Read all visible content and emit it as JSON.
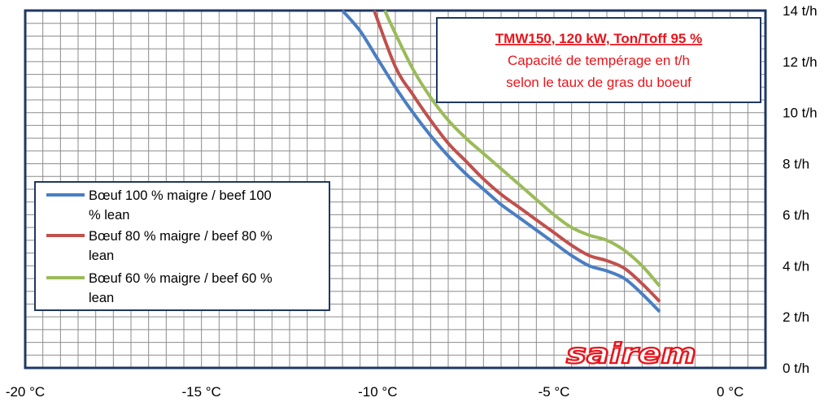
{
  "chart_data": {
    "type": "line",
    "title": "TMW150, 120 kW,  Ton/Toff 95 %",
    "subtitle_lines": [
      "Capacité de tempérage en t/h",
      "selon le taux de gras du boeuf"
    ],
    "x_ticks": [
      "-20 °C",
      "-15 °C",
      "-10 °C",
      "-5 °C",
      "0 °C"
    ],
    "y_ticks": [
      "0 t/h",
      "2 t/h",
      "4 t/h",
      "6 t/h",
      "8 t/h",
      "10 t/h",
      "12 t/h",
      "14 t/h"
    ],
    "xlim": [
      -20,
      1
    ],
    "ylim": [
      0,
      14
    ],
    "y_axis_position": "right",
    "grid": true,
    "legend_position": "middle-left",
    "series": [
      {
        "name_lines": [
          "Bœuf 100 % maigre / beef 100",
          "% lean"
        ],
        "color": "#4a7ec3",
        "x": [
          -11.0,
          -10.5,
          -10.0,
          -9.5,
          -9.0,
          -8.5,
          -8.0,
          -7.5,
          -7.0,
          -6.5,
          -6.0,
          -5.5,
          -5.0,
          -4.5,
          -4.0,
          -3.5,
          -3.0,
          -2.5,
          -2.0
        ],
        "y": [
          14.0,
          13.2,
          12.1,
          11.0,
          10.0,
          9.1,
          8.3,
          7.6,
          7.0,
          6.4,
          5.9,
          5.4,
          4.9,
          4.4,
          4.0,
          3.8,
          3.5,
          2.9,
          2.2
        ]
      },
      {
        "name_lines": [
          "Bœuf 80 % maigre /  beef 80 %",
          "lean"
        ],
        "color": "#c0504d",
        "x": [
          -10.1,
          -9.5,
          -9.0,
          -8.5,
          -8.0,
          -7.5,
          -7.0,
          -6.5,
          -6.0,
          -5.5,
          -5.0,
          -4.5,
          -4.0,
          -3.5,
          -3.0,
          -2.5,
          -2.0
        ],
        "y": [
          14.0,
          11.8,
          10.7,
          9.7,
          8.8,
          8.1,
          7.4,
          6.8,
          6.3,
          5.8,
          5.3,
          4.8,
          4.4,
          4.2,
          3.9,
          3.3,
          2.6
        ]
      },
      {
        "name_lines": [
          "Bœuf 60 % maigre / beef 60 %",
          "lean"
        ],
        "color": "#9bbb59",
        "x": [
          -9.8,
          -9.5,
          -9.0,
          -8.5,
          -8.0,
          -7.5,
          -7.0,
          -6.5,
          -6.0,
          -5.5,
          -5.0,
          -4.5,
          -4.0,
          -3.5,
          -3.0,
          -2.5,
          -2.0
        ],
        "y": [
          14.0,
          13.1,
          11.7,
          10.6,
          9.7,
          9.0,
          8.4,
          7.8,
          7.2,
          6.6,
          6.0,
          5.5,
          5.2,
          5.0,
          4.6,
          4.0,
          3.2
        ]
      }
    ]
  },
  "logo": {
    "text": "sairem",
    "color": "#e8141b"
  },
  "colors": {
    "axis": "#1f3864",
    "grid": "#7f7f7f",
    "title": "#e8141b"
  }
}
